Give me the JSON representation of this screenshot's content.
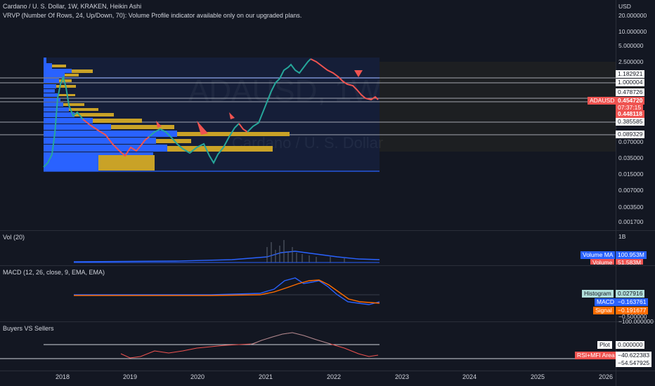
{
  "header": {
    "title": "Cardano / U. S. Dollar, 1W, KRAKEN, Heikin Ashi",
    "vrvp_notice": "VRVP (Number Of Rows, 24, Up/Down, 70): Volume Profile indicator available only on our upgraded plans."
  },
  "watermark": {
    "symbol": "ADAUSD, 1W",
    "name": "Cardano / U. S. Dollar"
  },
  "price_scale": {
    "currency": "USD",
    "ticks": [
      "20.000000",
      "10.000000",
      "5.000000",
      "2.500000",
      "0.070000",
      "0.035000",
      "0.015000",
      "0.007000",
      "0.003500",
      "0.001700"
    ]
  },
  "levels": [
    "1.182921",
    "1.000004",
    "0.478726",
    "0.385585",
    "0.089329"
  ],
  "price_tags": {
    "symbol": "ADAUSD",
    "last": "0.454720",
    "countdown": "07:37:15",
    "low": "0.448118"
  },
  "volume_pane": {
    "label": "Vol (20)",
    "scale_top": "1B",
    "volume_ma_label": "Volume MA",
    "volume_ma_value": "100.953M",
    "volume_label": "Volume",
    "volume_value": "51.583M"
  },
  "macd_pane": {
    "label": "MACD (12, 26, close, 9, EMA, EMA)",
    "histogram_label": "Histogram",
    "histogram_value": "0.027916",
    "macd_label": "MACD",
    "macd_value": "−0.163761",
    "signal_label": "Signal",
    "signal_value": "−0.191677",
    "scale_low_1": "−0.500000",
    "scale_low_2": "−100.000000"
  },
  "bvs_pane": {
    "label": "Buyers VS Sellers",
    "plot_label": "Plot",
    "plot_value": "0.000000",
    "rsi_label": "RSI+MFI Area",
    "rsi_value": "−40.622383",
    "last_value": "−54.547925"
  },
  "time_axis": [
    "2018",
    "2019",
    "2020",
    "2021",
    "2022",
    "2023",
    "2024",
    "2025",
    "2026"
  ],
  "colors": {
    "background": "#131722",
    "up": "#26a69a",
    "down": "#ef5350",
    "volume_profile_up": "#2962ff",
    "volume_profile_down": "#c9a227",
    "macd_line": "#2962ff",
    "signal_line": "#ff6d00"
  }
}
